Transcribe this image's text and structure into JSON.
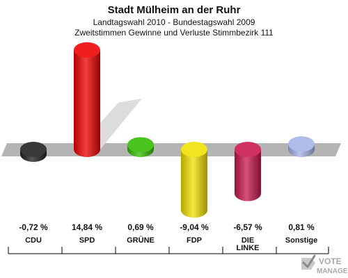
{
  "header": {
    "title": "Stadt Mülheim an der Ruhr",
    "subtitle1": "Landtagswahl 2010 - Bundestagswahl 2009",
    "subtitle2": "Zweitstimmen Gewinne und Verluste Stimmbezirk 111"
  },
  "logo": {
    "text_line1": "VOTE",
    "text_line2": "MANAGER"
  },
  "chart_data": {
    "type": "bar",
    "title": "Stadt Mülheim an der Ruhr",
    "subtitle": "Landtagswahl 2010 - Bundestagswahl 2009 / Zweitstimmen Gewinne und Verluste Stimmbezirk 111",
    "categories": [
      "CDU",
      "SPD",
      "GRÜNE",
      "FDP",
      "DIE LINKE",
      "Sonstige"
    ],
    "category_lines": [
      [
        "CDU"
      ],
      [
        "SPD"
      ],
      [
        "GRÜNE"
      ],
      [
        "FDP"
      ],
      [
        "DIE",
        "LINKE"
      ],
      [
        "Sonstige"
      ]
    ],
    "values": [
      -0.72,
      14.84,
      0.69,
      -9.04,
      -6.57,
      0.81
    ],
    "value_labels": [
      "-0,72 %",
      "14,84 %",
      "0,69 %",
      "-9,04 %",
      "-6,57 %",
      "0,81 %"
    ],
    "colors": [
      "#1e1e1e",
      "#ee0000",
      "#33bb00",
      "#f0e000",
      "#c8164a",
      "#a4b2e6"
    ],
    "unit": "%",
    "grid": false,
    "legend": "none"
  }
}
